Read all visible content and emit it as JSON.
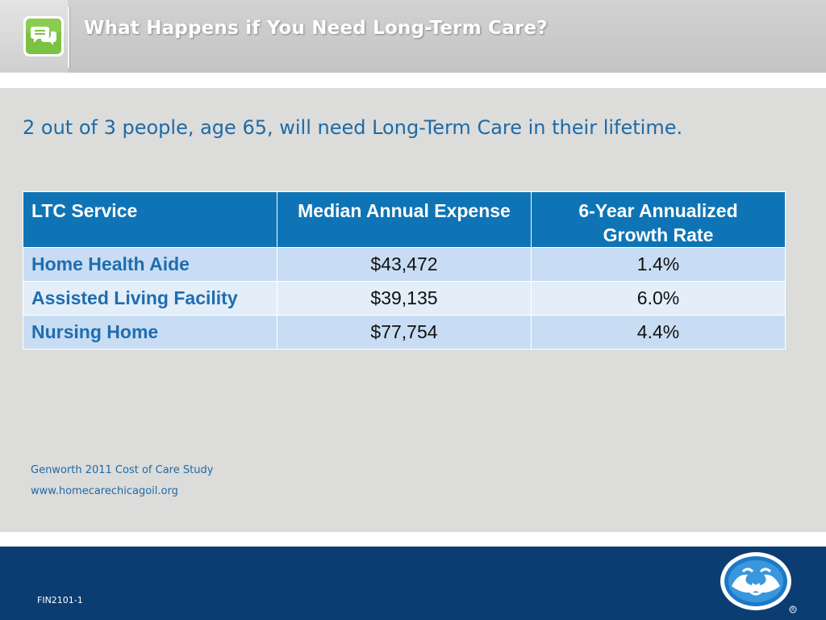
{
  "slide": {
    "title": "What Happens if You Need Long-Term Care?",
    "subtitle": "2 out of 3 people, age 65, will need Long-Term Care in their lifetime."
  },
  "icons": {
    "header": "speech-bubbles-icon",
    "logo": "good-hands-logo-icon"
  },
  "table": {
    "headers": {
      "service": "LTC Service",
      "expense": "Median Annual Expense",
      "growth_line1": "6-Year Annualized",
      "growth_line2": "Growth Rate"
    },
    "rows": [
      {
        "service": "Home Health Aide",
        "expense": "$43,472",
        "growth": "1.4%"
      },
      {
        "service": "Assisted Living Facility",
        "expense": "$39,135",
        "growth": "6.0%"
      },
      {
        "service": "Nursing Home",
        "expense": "$77,754",
        "growth": "4.4%"
      }
    ]
  },
  "sources": {
    "study": "Genworth 2011 Cost of Care Study",
    "url": "www.homecarechicagoil.org"
  },
  "footer": {
    "code": "FIN2101-1"
  },
  "colors": {
    "header_bg": "#0e74b6",
    "accent_blue": "#1e6aa5",
    "footer_bg": "#0b3d72",
    "row_odd": "#c8ddf3",
    "row_even": "#e3eef9",
    "icon_green": "#7cc242"
  }
}
